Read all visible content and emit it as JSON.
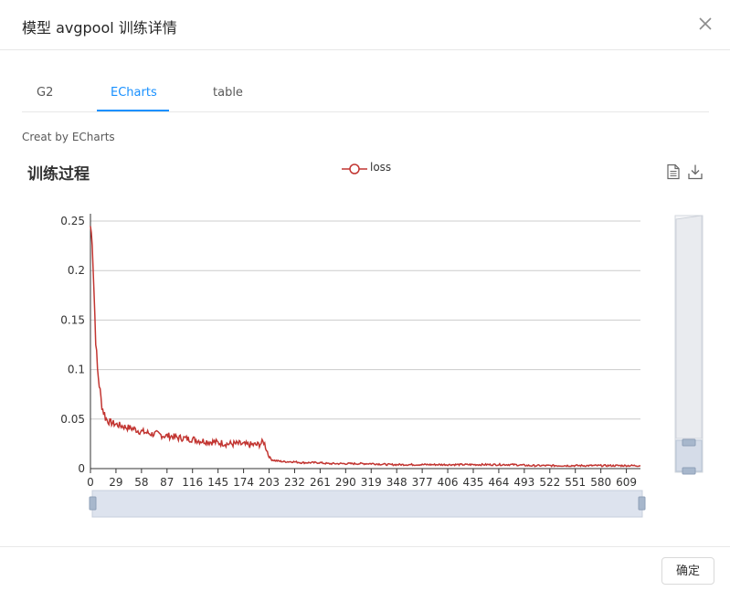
{
  "dialog": {
    "title": "模型 avgpool 训练详情",
    "ok_label": "确定"
  },
  "tabs": [
    {
      "label": "G2",
      "active": false
    },
    {
      "label": "ECharts",
      "active": true
    },
    {
      "label": "table",
      "active": false
    }
  ],
  "creat_label": "Creat by ECharts",
  "toolbar": {
    "icons": [
      "data-view-icon",
      "save-as-image-icon"
    ]
  },
  "colors": {
    "accent": "#1890ff",
    "series": "#c23531"
  },
  "chart_data": {
    "type": "line",
    "title": "训练过程",
    "legend": [
      "loss"
    ],
    "legend_position": "top-center",
    "x_tick_labels": [
      "0",
      "29",
      "58",
      "87",
      "116",
      "145",
      "174",
      "203",
      "232",
      "261",
      "290",
      "319",
      "348",
      "377",
      "406",
      "435",
      "464",
      "493",
      "522",
      "551",
      "580",
      "609"
    ],
    "y_tick_labels": [
      "0",
      "0.05",
      "0.1",
      "0.15",
      "0.2",
      "0.25"
    ],
    "xlim": [
      0,
      625
    ],
    "ylim": [
      0,
      0.25
    ],
    "grid": true,
    "datazoom": {
      "x": [
        0,
        100
      ],
      "y": [
        0,
        0.25
      ]
    },
    "series": [
      {
        "name": "loss",
        "x": [
          0,
          2,
          4,
          6,
          8,
          10,
          12,
          14,
          16,
          18,
          20,
          22,
          25,
          28,
          32,
          36,
          40,
          45,
          50,
          55,
          60,
          65,
          70,
          75,
          80,
          85,
          90,
          95,
          100,
          105,
          110,
          115,
          120,
          125,
          130,
          135,
          140,
          145,
          150,
          155,
          160,
          165,
          170,
          175,
          180,
          185,
          190,
          195,
          197,
          200,
          203,
          206,
          210,
          220,
          230,
          240,
          250,
          260,
          270,
          280,
          290,
          300,
          320,
          340,
          360,
          380,
          400,
          420,
          440,
          460,
          480,
          500,
          520,
          540,
          560,
          580,
          600,
          620,
          625
        ],
        "y": [
          0.245,
          0.23,
          0.18,
          0.13,
          0.1,
          0.085,
          0.07,
          0.06,
          0.055,
          0.05,
          0.048,
          0.047,
          0.046,
          0.045,
          0.044,
          0.043,
          0.042,
          0.041,
          0.04,
          0.038,
          0.037,
          0.036,
          0.035,
          0.035,
          0.034,
          0.033,
          0.033,
          0.032,
          0.031,
          0.031,
          0.03,
          0.03,
          0.029,
          0.028,
          0.028,
          0.027,
          0.027,
          0.026,
          0.026,
          0.025,
          0.025,
          0.025,
          0.025,
          0.024,
          0.024,
          0.024,
          0.024,
          0.026,
          0.027,
          0.02,
          0.012,
          0.009,
          0.008,
          0.007,
          0.007,
          0.006,
          0.006,
          0.006,
          0.005,
          0.005,
          0.005,
          0.005,
          0.005,
          0.004,
          0.004,
          0.004,
          0.004,
          0.004,
          0.004,
          0.004,
          0.004,
          0.003,
          0.003,
          0.003,
          0.003,
          0.003,
          0.003,
          0.003,
          0.003
        ]
      }
    ]
  }
}
